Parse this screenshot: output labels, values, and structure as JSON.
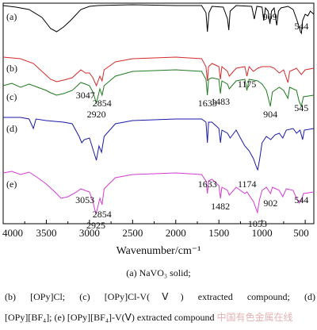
{
  "chart_data": {
    "type": "line",
    "xlabel": "Wavenumber/cm⁻¹",
    "xlim": [
      4000,
      400
    ],
    "xticks": [
      4000,
      3500,
      3000,
      2500,
      2000,
      1500,
      1000,
      500
    ],
    "series": [
      {
        "name": "(a)",
        "color": "#000000",
        "points": [
          [
            4000,
            3
          ],
          [
            3850,
            5
          ],
          [
            3700,
            8
          ],
          [
            3550,
            18
          ],
          [
            3450,
            32
          ],
          [
            3380,
            36
          ],
          [
            3300,
            30
          ],
          [
            3220,
            22
          ],
          [
            3100,
            8
          ],
          [
            3000,
            4
          ],
          [
            2900,
            3
          ],
          [
            2500,
            2
          ],
          [
            2000,
            3
          ],
          [
            1700,
            3
          ],
          [
            1650,
            12
          ],
          [
            1633,
            36
          ],
          [
            1615,
            12
          ],
          [
            1580,
            4
          ],
          [
            1450,
            5
          ],
          [
            1400,
            20
          ],
          [
            1385,
            34
          ],
          [
            1370,
            10
          ],
          [
            1300,
            3
          ],
          [
            1120,
            4
          ],
          [
            1090,
            20
          ],
          [
            1060,
            4
          ],
          [
            1000,
            5
          ],
          [
            980,
            22
          ],
          [
            960,
            6
          ],
          [
            930,
            10
          ],
          [
            909,
            26
          ],
          [
            890,
            10
          ],
          [
            860,
            6
          ],
          [
            830,
            28
          ],
          [
            810,
            10
          ],
          [
            780,
            6
          ],
          [
            700,
            4
          ],
          [
            640,
            8
          ],
          [
            600,
            20
          ],
          [
            570,
            30
          ],
          [
            555,
            36
          ],
          [
            544,
            38
          ],
          [
            530,
            22
          ],
          [
            500,
            14
          ],
          [
            470,
            16
          ],
          [
            440,
            10
          ],
          [
            400,
            14
          ]
        ],
        "labels": [
          {
            "text": "909",
            "x": 909,
            "dy": -5
          },
          {
            "text": "544",
            "x": 544,
            "dy": -5
          }
        ]
      },
      {
        "name": "(b)",
        "color": "#d42a2a",
        "points": [
          [
            4000,
            68
          ],
          [
            3800,
            70
          ],
          [
            3650,
            76
          ],
          [
            3550,
            86
          ],
          [
            3450,
            96
          ],
          [
            3380,
            99
          ],
          [
            3300,
            97
          ],
          [
            3200,
            94
          ],
          [
            3100,
            84
          ],
          [
            3047,
            88
          ],
          [
            3000,
            88
          ],
          [
            2960,
            94
          ],
          [
            2920,
            104
          ],
          [
            2880,
            92
          ],
          [
            2854,
            98
          ],
          [
            2830,
            84
          ],
          [
            2700,
            74
          ],
          [
            2500,
            70
          ],
          [
            2000,
            68
          ],
          [
            1700,
            70
          ],
          [
            1650,
            80
          ],
          [
            1633,
            98
          ],
          [
            1620,
            80
          ],
          [
            1580,
            76
          ],
          [
            1500,
            80
          ],
          [
            1483,
            96
          ],
          [
            1465,
            80
          ],
          [
            1400,
            86
          ],
          [
            1380,
            92
          ],
          [
            1300,
            82
          ],
          [
            1200,
            80
          ],
          [
            1175,
            92
          ],
          [
            1150,
            80
          ],
          [
            1100,
            86
          ],
          [
            1050,
            82
          ],
          [
            1000,
            80
          ],
          [
            904,
            80
          ],
          [
            860,
            82
          ],
          [
            800,
            88
          ],
          [
            750,
            84
          ],
          [
            700,
            100
          ],
          [
            680,
            86
          ],
          [
            600,
            82
          ],
          [
            545,
            90
          ],
          [
            500,
            84
          ],
          [
            400,
            82
          ]
        ]
      },
      {
        "name": "(c)",
        "color": "#1f7a1f",
        "points": [
          [
            4000,
            104
          ],
          [
            3900,
            101
          ],
          [
            3800,
            106
          ],
          [
            3700,
            102
          ],
          [
            3600,
            106
          ],
          [
            3500,
            110
          ],
          [
            3450,
            113
          ],
          [
            3380,
            116
          ],
          [
            3300,
            114
          ],
          [
            3200,
            110
          ],
          [
            3100,
            100
          ],
          [
            3047,
            102
          ],
          [
            3000,
            104
          ],
          [
            2960,
            112
          ],
          [
            2920,
            126
          ],
          [
            2880,
            108
          ],
          [
            2854,
            116
          ],
          [
            2830,
            104
          ],
          [
            2700,
            92
          ],
          [
            2500,
            86
          ],
          [
            2000,
            84
          ],
          [
            1700,
            86
          ],
          [
            1650,
            96
          ],
          [
            1633,
            116
          ],
          [
            1620,
            96
          ],
          [
            1580,
            94
          ],
          [
            1500,
            96
          ],
          [
            1483,
            114
          ],
          [
            1465,
            98
          ],
          [
            1400,
            102
          ],
          [
            1380,
            108
          ],
          [
            1300,
            98
          ],
          [
            1200,
            96
          ],
          [
            1175,
            110
          ],
          [
            1150,
            96
          ],
          [
            1050,
            98
          ],
          [
            1000,
            102
          ],
          [
            950,
            110
          ],
          [
            904,
            130
          ],
          [
            880,
            112
          ],
          [
            800,
            106
          ],
          [
            750,
            110
          ],
          [
            700,
            120
          ],
          [
            680,
            106
          ],
          [
            600,
            110
          ],
          [
            570,
            124
          ],
          [
            545,
            130
          ],
          [
            520,
            118
          ],
          [
            400,
            116
          ]
        ],
        "labels": [
          {
            "text": "3047",
            "x": 3047,
            "dy": 18
          },
          {
            "text": "2920",
            "x": 2920,
            "dy": 18
          },
          {
            "text": "2854",
            "x": 2854,
            "dy": 14
          },
          {
            "text": "1633",
            "x": 1633,
            "dy": 14
          },
          {
            "text": "1483",
            "x": 1483,
            "dy": 14
          },
          {
            "text": "1175",
            "x": 1175,
            "dy": -4
          },
          {
            "text": "904",
            "x": 904,
            "dy": 14
          },
          {
            "text": "545",
            "x": 545,
            "dy": 6
          }
        ]
      },
      {
        "name": "(d)",
        "color": "#1a1aa8",
        "points": [
          [
            4000,
            144
          ],
          [
            3800,
            144
          ],
          [
            3700,
            146
          ],
          [
            3650,
            158
          ],
          [
            3620,
            146
          ],
          [
            3500,
            148
          ],
          [
            3300,
            150
          ],
          [
            3200,
            152
          ],
          [
            3120,
            168
          ],
          [
            3090,
            176
          ],
          [
            3060,
            172
          ],
          [
            3000,
            170
          ],
          [
            2960,
            184
          ],
          [
            2920,
            198
          ],
          [
            2890,
            180
          ],
          [
            2860,
            188
          ],
          [
            2830,
            168
          ],
          [
            2700,
            152
          ],
          [
            2500,
            148
          ],
          [
            2000,
            146
          ],
          [
            1700,
            146
          ],
          [
            1650,
            150
          ],
          [
            1633,
            176
          ],
          [
            1620,
            150
          ],
          [
            1580,
            150
          ],
          [
            1500,
            158
          ],
          [
            1482,
            176
          ],
          [
            1465,
            160
          ],
          [
            1400,
            164
          ],
          [
            1370,
            170
          ],
          [
            1300,
            160
          ],
          [
            1250,
            170
          ],
          [
            1200,
            180
          ],
          [
            1150,
            186
          ],
          [
            1100,
            196
          ],
          [
            1060,
            208
          ],
          [
            1050,
            210
          ],
          [
            1030,
            198
          ],
          [
            1000,
            176
          ],
          [
            950,
            168
          ],
          [
            900,
            172
          ],
          [
            850,
            166
          ],
          [
            800,
            164
          ],
          [
            760,
            170
          ],
          [
            720,
            160
          ],
          [
            640,
            158
          ],
          [
            600,
            164
          ],
          [
            560,
            160
          ],
          [
            530,
            172
          ],
          [
            510,
            160
          ],
          [
            400,
            158
          ]
        ]
      },
      {
        "name": "(e)",
        "color": "#d63ad6",
        "points": [
          [
            4000,
            214
          ],
          [
            3900,
            212
          ],
          [
            3800,
            216
          ],
          [
            3700,
            213
          ],
          [
            3600,
            220
          ],
          [
            3500,
            228
          ],
          [
            3400,
            238
          ],
          [
            3330,
            246
          ],
          [
            3250,
            244
          ],
          [
            3150,
            238
          ],
          [
            3100,
            234
          ],
          [
            3053,
            236
          ],
          [
            3000,
            238
          ],
          [
            2960,
            250
          ],
          [
            2925,
            266
          ],
          [
            2880,
            246
          ],
          [
            2854,
            254
          ],
          [
            2830,
            234
          ],
          [
            2700,
            220
          ],
          [
            2500,
            216
          ],
          [
            2000,
            214
          ],
          [
            1700,
            216
          ],
          [
            1650,
            224
          ],
          [
            1633,
            240
          ],
          [
            1620,
            224
          ],
          [
            1580,
            222
          ],
          [
            1500,
            230
          ],
          [
            1482,
            246
          ],
          [
            1465,
            232
          ],
          [
            1400,
            236
          ],
          [
            1380,
            242
          ],
          [
            1300,
            232
          ],
          [
            1250,
            236
          ],
          [
            1200,
            240
          ],
          [
            1174,
            238
          ],
          [
            1150,
            242
          ],
          [
            1100,
            250
          ],
          [
            1060,
            262
          ],
          [
            1053,
            264
          ],
          [
            1030,
            248
          ],
          [
            1000,
            236
          ],
          [
            950,
            232
          ],
          [
            902,
            240
          ],
          [
            880,
            232
          ],
          [
            800,
            236
          ],
          [
            760,
            244
          ],
          [
            720,
            234
          ],
          [
            640,
            236
          ],
          [
            600,
            246
          ],
          [
            570,
            252
          ],
          [
            544,
            248
          ],
          [
            520,
            240
          ],
          [
            400,
            238
          ]
        ],
        "labels": [
          {
            "text": "3053",
            "x": 3053,
            "dy": 16
          },
          {
            "text": "2925",
            "x": 2925,
            "dy": 18
          },
          {
            "text": "2854",
            "x": 2854,
            "dy": 16
          },
          {
            "text": "1633",
            "x": 1633,
            "dy": -8
          },
          {
            "text": "1482",
            "x": 1482,
            "dy": 14
          },
          {
            "text": "1174",
            "x": 1174,
            "dy": -6
          },
          {
            "text": "1053",
            "x": 1053,
            "dy": 18
          },
          {
            "text": "902",
            "x": 902,
            "dy": 16
          },
          {
            "text": "544",
            "x": 544,
            "dy": 4
          }
        ]
      }
    ]
  },
  "captions": {
    "line1": "(a)  NaVO₃  solid;",
    "line2": "(b)  [OPy]Cl;  (c)  [OPy]Cl-V(Ⅴ)  extracted  compound;  (d)",
    "line3": "[OPy][BF₄]; (e) [OPy][BF₄]-V(Ⅴ) extracted compound",
    "watermark": "中国有色金属在线"
  }
}
